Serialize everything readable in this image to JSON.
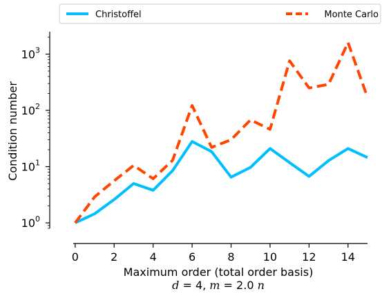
{
  "chart_data": {
    "type": "line",
    "xlabel": "Maximum order (total order basis)",
    "subtitle": {
      "d_sym": "d",
      "d_eq": " = 4, ",
      "m_sym": "m",
      "m_eq": " = 2.0 ",
      "n_sym": "n"
    },
    "ylabel": "Condition number",
    "y_scale": "log",
    "xlim": [
      -0.1,
      15
    ],
    "ylim": [
      0.8,
      2500
    ],
    "x_ticks": [
      0,
      2,
      4,
      6,
      8,
      10,
      12,
      14
    ],
    "x_tick_labels": [
      "0",
      "2",
      "4",
      "6",
      "8",
      "10",
      "12",
      "14"
    ],
    "y_ticks": [
      1,
      10,
      100,
      1000
    ],
    "y_tick_labels": {
      "base": [
        "10",
        "10",
        "10",
        "10"
      ],
      "exp": [
        "0",
        "1",
        "2",
        "3"
      ]
    },
    "x": [
      0,
      1,
      2,
      3,
      4,
      5,
      6,
      7,
      8,
      9,
      10,
      11,
      12,
      13,
      14,
      15
    ],
    "series": [
      {
        "name": "Christoffel",
        "color": "#00BFFF",
        "dash": "solid",
        "values": [
          1,
          1.45,
          2.6,
          5.0,
          3.8,
          8.5,
          28,
          18.5,
          6.5,
          9.7,
          21,
          11.8,
          6.7,
          12.8,
          21,
          14.5
        ]
      },
      {
        "name": "Monte Carlo",
        "color": "#FF4500",
        "dash": "dashed",
        "values": [
          1,
          2.9,
          5.6,
          10.5,
          6.1,
          13,
          122,
          22,
          30,
          68,
          46,
          760,
          250,
          290,
          1600,
          170
        ]
      }
    ],
    "grid": false,
    "legend_placement": "top, outside plot"
  }
}
